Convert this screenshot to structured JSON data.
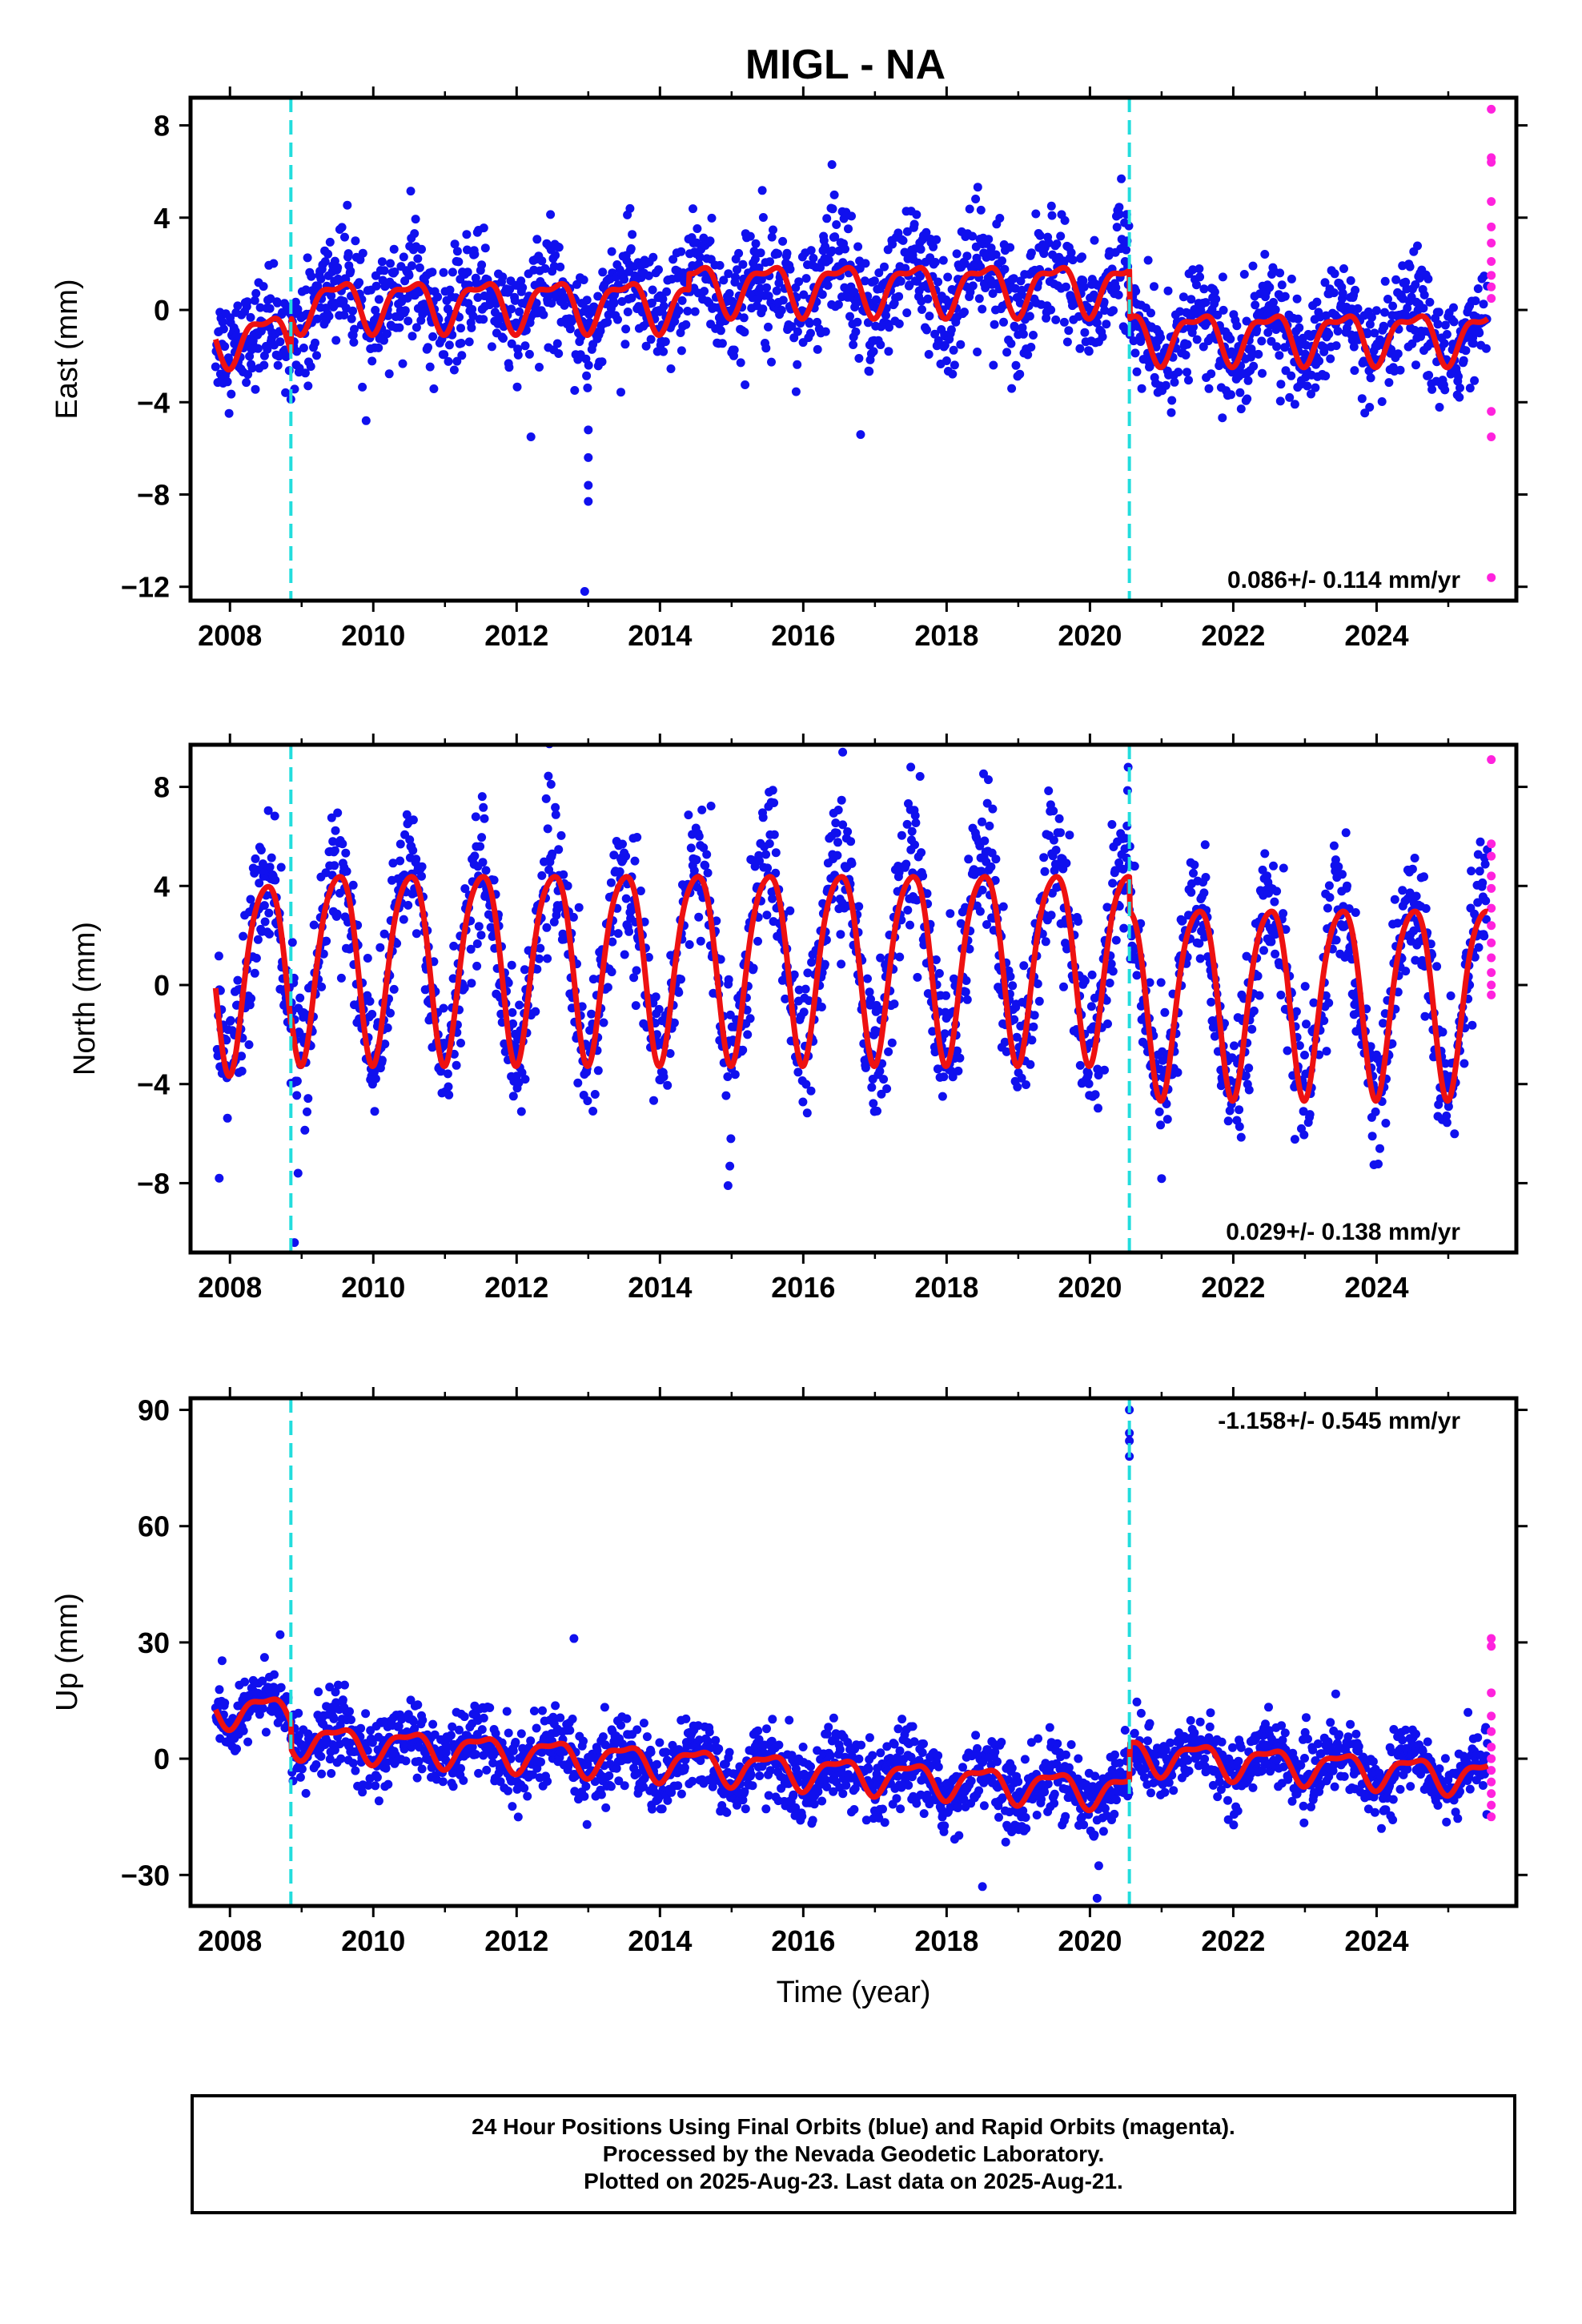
{
  "title": "MIGL - NA",
  "colors": {
    "final_orbits": "#1010ee",
    "rapid_orbits": "#ff22dd",
    "model": "#ee1111",
    "event_lines": "#22dddd",
    "frame": "#000000"
  },
  "chart_data": [
    {
      "type": "scatter",
      "ylabel": "East (mm)",
      "xlabel": "",
      "xlim": [
        2007.45,
        2025.95
      ],
      "ylim": [
        -12.6,
        9.2
      ],
      "x_ticks": [
        2008,
        2010,
        2012,
        2014,
        2016,
        2018,
        2020,
        2022,
        2024
      ],
      "y_ticks": [
        -12,
        -8,
        -4,
        0,
        4,
        8
      ],
      "grid": false,
      "event_lines": [
        2008.85,
        2020.55
      ],
      "rate_annotation": "0.086+/- 0.114 mm/yr",
      "rate_annotation_position": "bottom-right",
      "series": [
        {
          "name": "Final Orbits (blue)",
          "x_range": [
            2007.8,
            2025.55
          ],
          "segments": [
            {
              "from": 2007.8,
              "to": 2008.85,
              "level": -1.2,
              "annual_amplitude": 0.4,
              "scatter": 1.1
            },
            {
              "from": 2008.85,
              "to": 2014.4,
              "level": 0.3,
              "annual_amplitude": 1.0,
              "scatter": 1.2
            },
            {
              "from": 2014.4,
              "to": 2020.55,
              "level": 1.0,
              "annual_amplitude": 1.2,
              "scatter": 1.3
            },
            {
              "from": 2020.55,
              "to": 2025.55,
              "level": -1.1,
              "annual_amplitude": 1.1,
              "scatter": 1.1
            }
          ],
          "outliers": [
            [
              2009.9,
              -4.8
            ],
            [
              2012.2,
              -5.5
            ],
            [
              2013.0,
              -5.2
            ],
            [
              2013.0,
              -6.4
            ],
            [
              2013.0,
              -7.6
            ],
            [
              2013.0,
              -8.3
            ],
            [
              2012.95,
              -12.2
            ],
            [
              2016.4,
              6.3
            ],
            [
              2016.8,
              -5.4
            ]
          ]
        },
        {
          "name": "Rapid Orbits (magenta)",
          "points": [
            [
              2025.6,
              8.7
            ],
            [
              2025.6,
              6.6
            ],
            [
              2025.6,
              6.4
            ],
            [
              2025.6,
              4.7
            ],
            [
              2025.6,
              3.6
            ],
            [
              2025.6,
              2.9
            ],
            [
              2025.6,
              2.1
            ],
            [
              2025.6,
              1.5
            ],
            [
              2025.6,
              1.0
            ],
            [
              2025.6,
              0.5
            ],
            [
              2025.6,
              -4.4
            ],
            [
              2025.6,
              -5.5
            ],
            [
              2025.6,
              -11.6
            ]
          ]
        },
        {
          "name": "Model",
          "offsets": [
            [
              2007.8,
              -1.2
            ],
            [
              2008.85,
              0.3
            ],
            [
              2014.4,
              1.0
            ],
            [
              2020.55,
              -1.1
            ]
          ],
          "annual_amplitude": 1.0,
          "semiannual_amplitude": 0.4
        }
      ]
    },
    {
      "type": "scatter",
      "ylabel": "North (mm)",
      "xlabel": "",
      "xlim": [
        2007.45,
        2025.95
      ],
      "ylim": [
        -10.8,
        9.7
      ],
      "x_ticks": [
        2008,
        2010,
        2012,
        2014,
        2016,
        2018,
        2020,
        2022,
        2024
      ],
      "y_ticks": [
        -8,
        -4,
        0,
        4,
        8
      ],
      "grid": false,
      "event_lines": [
        2008.85,
        2020.55
      ],
      "rate_annotation": "0.029+/- 0.138 mm/yr",
      "rate_annotation_position": "bottom-right",
      "series": [
        {
          "name": "Final Orbits (blue)",
          "x_range": [
            2007.8,
            2025.55
          ],
          "segments": [
            {
              "from": 2007.8,
              "to": 2008.85,
              "level": 0.7,
              "annual_amplitude": 3.6,
              "scatter": 1.3
            },
            {
              "from": 2008.85,
              "to": 2014.0,
              "level": 1.1,
              "annual_amplitude": 3.8,
              "scatter": 1.3
            },
            {
              "from": 2014.0,
              "to": 2020.55,
              "level": 1.3,
              "annual_amplitude": 3.9,
              "scatter": 1.4
            },
            {
              "from": 2020.55,
              "to": 2025.55,
              "level": -0.3,
              "annual_amplitude": 3.9,
              "scatter": 1.3
            }
          ],
          "outliers": [
            [
              2007.85,
              -7.8
            ],
            [
              2008.95,
              -7.6
            ],
            [
              2008.9,
              -10.4
            ],
            [
              2014.95,
              -8.1
            ],
            [
              2016.55,
              9.4
            ],
            [
              2017.5,
              8.8
            ]
          ]
        },
        {
          "name": "Rapid Orbits (magenta)",
          "points": [
            [
              2025.6,
              9.1
            ],
            [
              2025.6,
              5.7
            ],
            [
              2025.6,
              5.2
            ],
            [
              2025.6,
              4.4
            ],
            [
              2025.6,
              3.9
            ],
            [
              2025.6,
              3.1
            ],
            [
              2025.6,
              2.4
            ],
            [
              2025.6,
              1.7
            ],
            [
              2025.6,
              1.1
            ],
            [
              2025.6,
              0.5
            ],
            [
              2025.6,
              0.0
            ],
            [
              2025.6,
              -0.4
            ]
          ]
        },
        {
          "name": "Model",
          "offsets": [
            [
              2007.8,
              0.7
            ],
            [
              2008.85,
              1.1
            ],
            [
              2020.55,
              -0.3
            ]
          ],
          "annual_amplitude": 3.8,
          "semiannual_amplitude": 0.6
        }
      ]
    },
    {
      "type": "scatter",
      "ylabel": "Up (mm)",
      "xlabel": "Time (year)",
      "xlim": [
        2007.45,
        2025.95
      ],
      "ylim": [
        -38,
        93
      ],
      "x_ticks": [
        2008,
        2010,
        2012,
        2014,
        2016,
        2018,
        2020,
        2022,
        2024
      ],
      "y_ticks": [
        -30,
        0,
        30,
        60,
        90
      ],
      "grid": false,
      "event_lines": [
        2008.85,
        2020.55
      ],
      "rate_annotation": "-1.158+/- 0.545 mm/yr",
      "rate_annotation_position": "top-right",
      "series": [
        {
          "name": "Final Orbits (blue)",
          "x_range": [
            2007.8,
            2025.55
          ],
          "segments": [
            {
              "from": 2007.8,
              "to": 2008.85,
              "level": 13,
              "annual_amplitude": 3.5,
              "scatter": 3.5
            },
            {
              "from": 2008.85,
              "to": 2020.55,
              "level": 5,
              "trend": -1.2,
              "annual_amplitude": 4.0,
              "scatter": 4.8
            },
            {
              "from": 2020.55,
              "to": 2025.55,
              "level": 1,
              "trend": -1.0,
              "annual_amplitude": 4.0,
              "scatter": 4.2
            }
          ],
          "outliers": [
            [
              2008.7,
              32
            ],
            [
              2020.55,
              90
            ],
            [
              2020.55,
              84
            ],
            [
              2020.55,
              82
            ],
            [
              2020.55,
              78
            ],
            [
              2012.8,
              31
            ],
            [
              2018.5,
              -33
            ],
            [
              2020.1,
              -36
            ]
          ]
        },
        {
          "name": "Rapid Orbits (magenta)",
          "points": [
            [
              2025.6,
              31
            ],
            [
              2025.6,
              29
            ],
            [
              2025.6,
              17
            ],
            [
              2025.6,
              11
            ],
            [
              2025.6,
              7
            ],
            [
              2025.6,
              3
            ],
            [
              2025.6,
              0
            ],
            [
              2025.6,
              -3
            ],
            [
              2025.6,
              -6
            ],
            [
              2025.6,
              -9
            ],
            [
              2025.6,
              -12
            ],
            [
              2025.6,
              -15
            ]
          ]
        },
        {
          "name": "Model",
          "offsets": [
            [
              2007.8,
              13
            ],
            [
              2008.85,
              5
            ],
            [
              2020.55,
              1
            ]
          ],
          "trend": -1.158,
          "annual_amplitude": 4.0,
          "semiannual_amplitude": 1.5
        }
      ]
    }
  ],
  "footer": {
    "line1": "24 Hour Positions Using Final Orbits (blue) and Rapid Orbits (magenta).",
    "line2": "Processed by the Nevada Geodetic Laboratory.",
    "line3": "Plotted on 2025-Aug-23. Last data on 2025-Aug-21."
  }
}
